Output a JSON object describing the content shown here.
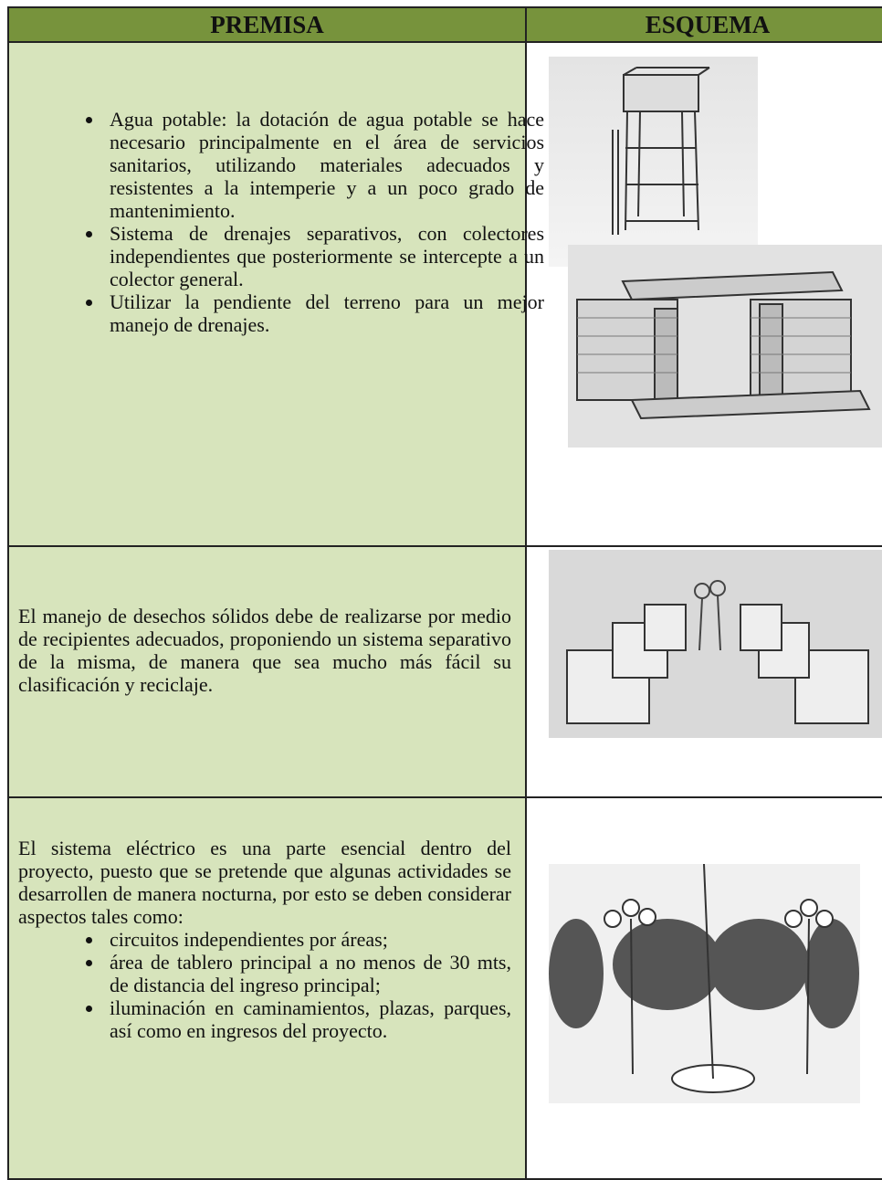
{
  "header": {
    "premise": "PREMISA",
    "scheme": "ESQUEMA"
  },
  "rows": [
    {
      "bullets": [
        "Agua potable: la dotación de agua potable se hace necesario principalmente en el área de servicios sanitarios, utilizando materiales adecuados y resistentes a la intemperie y a un poco grado de mantenimiento.",
        "Sistema de drenajes separativos, con colectores independientes que posteriormente se intercepte a un colector general.",
        "Utilizar la pendiente del terreno para un mejor manejo de drenajes."
      ]
    },
    {
      "text": "El manejo de desechos sólidos debe de realizarse por medio de recipientes adecuados, proponiendo un sistema separativo de la misma, de manera que sea mucho más fácil su clasificación y reciclaje."
    },
    {
      "text": "El sistema eléctrico es una parte esencial dentro del proyecto, puesto que se pretende que algunas actividades se desarrollen de manera nocturna, por esto se deben considerar aspectos tales como:",
      "bullets": [
        "circuitos independientes por áreas;",
        "área de tablero principal a no menos de 30 mts, de distancia del ingreso principal;",
        "iluminación en caminamientos, plazas, parques, así como en ingresos del proyecto."
      ]
    }
  ]
}
